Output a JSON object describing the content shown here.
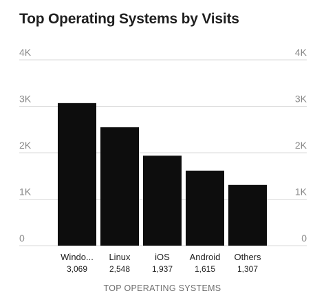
{
  "chart_data": {
    "type": "bar",
    "title": "Top Operating Systems by Visits",
    "xlabel": "TOP OPERATING SYSTEMS",
    "ylabel": "",
    "categories": [
      "Windo...",
      "Linux",
      "iOS",
      "Android",
      "Others"
    ],
    "value_labels": [
      "3,069",
      "2,548",
      "1,937",
      "1,615",
      "1,307"
    ],
    "values": [
      3069,
      2548,
      1937,
      1615,
      1307
    ],
    "ylim": [
      0,
      4000
    ],
    "yticks": [
      0,
      1000,
      2000,
      3000,
      4000
    ],
    "ytick_labels": [
      "0",
      "1K",
      "2K",
      "3K",
      "4K"
    ],
    "y_axis_sides": "both",
    "grid": true,
    "legend": "none",
    "colors": {
      "bar": "#0d0d0d",
      "grid": "#d9d9d9",
      "tick_text": "#8a8a8a",
      "text": "#1f1f1f",
      "axis_title": "#6e6e6e"
    }
  }
}
